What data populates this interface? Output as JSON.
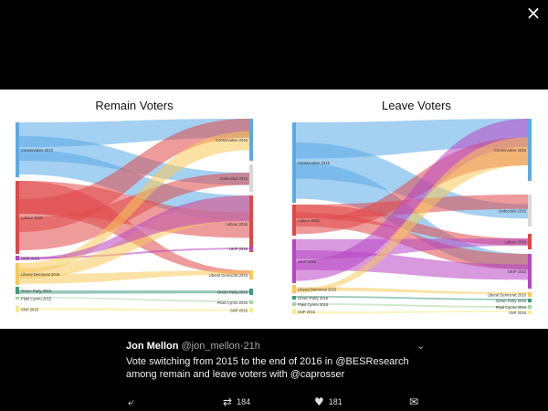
{
  "close_icon": "×",
  "charts": [
    {
      "title": "Remain Voters",
      "left_labels": [
        "Conservative 2015",
        "Labour 2015",
        "UKIP 2015",
        "Liberal Democrat 2015",
        "Green Party 2015",
        "Plaid Cymru 2015",
        "SNP 2015"
      ],
      "right_labels": [
        "Conservative 2016",
        "Undecided 2016",
        "Labour 2016",
        "UKIP 2016",
        "Liberal Democrat 2016",
        "Green Party 2016",
        "Plaid Cymru 2016",
        "SNP 2016"
      ]
    },
    {
      "title": "Leave Voters",
      "left_labels": [
        "Conservative 2015",
        "Labour 2015",
        "UKIP 2015",
        "Liberal Democrat 2015",
        "Green Party 2015",
        "Plaid Cymru 2015",
        "SNP 2015"
      ],
      "right_labels": [
        "Conservative 2016",
        "Undecided 2016",
        "Labour 2016",
        "UKIP 2016",
        "Liberal Democrat 2016",
        "Green Party 2016",
        "Plaid Cymru 2016",
        "SNP 2016"
      ]
    }
  ],
  "colors": {
    "conservative": "#5aaae6",
    "undecided": "#d8d8d8",
    "labour": "#e04848",
    "ukip": "#b845c4",
    "libdem": "#f7c95a",
    "green": "#3e9a7a",
    "plaid": "#a6d6a0",
    "snp": "#f5ec8c"
  },
  "tweet": {
    "author": "Jon Mellon",
    "handle": "@jon_mellon",
    "dot": "·",
    "time": "21h",
    "text_before": "Vote switching from 2015 to the end of 2016 in ",
    "mention1": "@BESResearch",
    "text_middle": " among remain and leave voters with ",
    "mention2": "@caprosser",
    "chevron_icon": "⌄"
  },
  "actions": {
    "reply_icon": "⤶",
    "retweet_icon": "⇄",
    "retweet_count": "184",
    "like_icon": "♥",
    "like_count": "181",
    "dm_icon": "✉"
  }
}
